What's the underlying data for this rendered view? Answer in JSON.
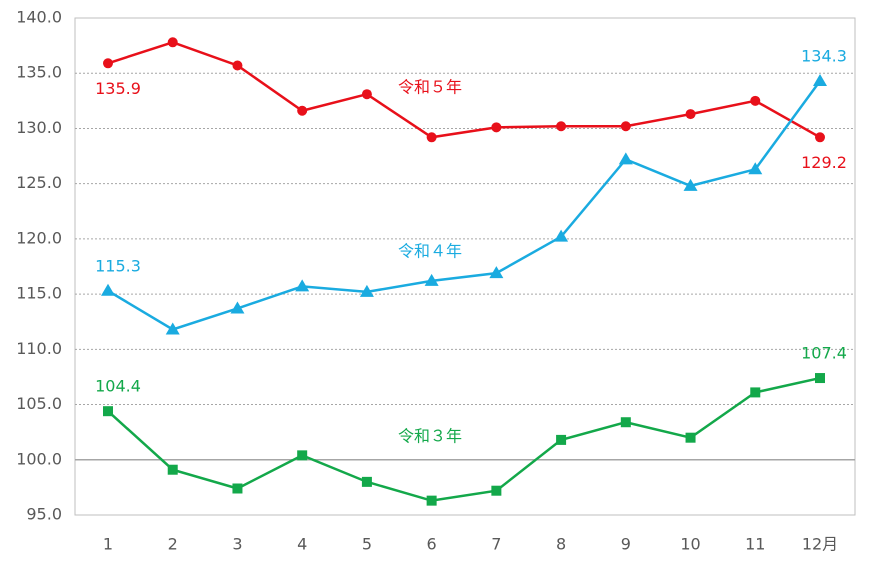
{
  "chart_data": {
    "type": "line",
    "categories": [
      "1",
      "2",
      "3",
      "4",
      "5",
      "6",
      "7",
      "8",
      "9",
      "10",
      "11",
      "12月"
    ],
    "series": [
      {
        "name": "令和５年",
        "color": "#e8101a",
        "marker": "circle",
        "values": [
          135.9,
          137.8,
          135.7,
          131.6,
          133.1,
          129.2,
          130.1,
          130.2,
          130.2,
          131.3,
          132.5,
          129.2
        ]
      },
      {
        "name": "令和４年",
        "color": "#1aabe0",
        "marker": "triangle",
        "values": [
          115.3,
          111.8,
          113.7,
          115.7,
          115.2,
          116.2,
          116.9,
          120.2,
          127.2,
          124.8,
          126.3,
          134.3
        ]
      },
      {
        "name": "令和３年",
        "color": "#13a84a",
        "marker": "square",
        "values": [
          104.4,
          99.1,
          97.4,
          100.4,
          98.0,
          96.3,
          97.2,
          101.8,
          103.4,
          102.0,
          106.1,
          107.4
        ]
      }
    ],
    "ylim": [
      95,
      140
    ],
    "yticks": [
      {
        "value": 95,
        "label": "95.0"
      },
      {
        "value": 100,
        "label": "100.0"
      },
      {
        "value": 105,
        "label": "105.0"
      },
      {
        "value": 110,
        "label": "110.0"
      },
      {
        "value": 115,
        "label": "115.0"
      },
      {
        "value": 120,
        "label": "120.0"
      },
      {
        "value": 125,
        "label": "125.0"
      },
      {
        "value": 130,
        "label": "130.0"
      },
      {
        "value": 135,
        "label": "135.0"
      },
      {
        "value": 140,
        "label": "140.0"
      }
    ],
    "grid": true
  }
}
